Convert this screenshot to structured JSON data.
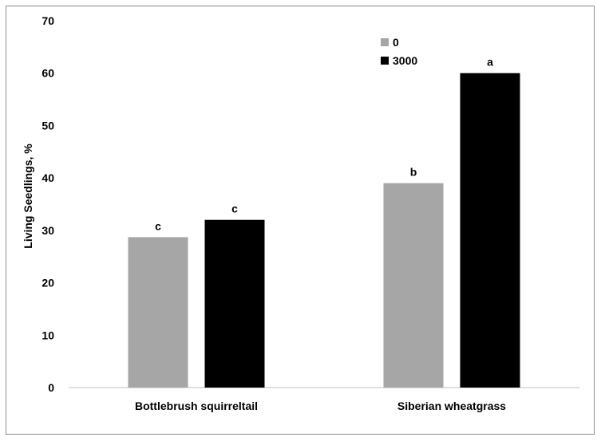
{
  "chart_data": {
    "type": "bar",
    "categories": [
      "Bottlebrush squirreltail",
      "Siberian wheatgrass"
    ],
    "series": [
      {
        "name": "0",
        "values": [
          28.7,
          39.0
        ],
        "labels": [
          "c",
          "b"
        ],
        "color": "#a6a6a6"
      },
      {
        "name": "3000",
        "values": [
          32.0,
          60.0
        ],
        "labels": [
          "c",
          "a"
        ],
        "color": "#000000"
      }
    ],
    "ylabel": "Living Seedlings, %",
    "xlabel": "",
    "ylim": [
      0,
      70
    ],
    "yticks": [
      0,
      10,
      20,
      30,
      40,
      50,
      60,
      70
    ],
    "grid": false,
    "legend": "top-right"
  }
}
